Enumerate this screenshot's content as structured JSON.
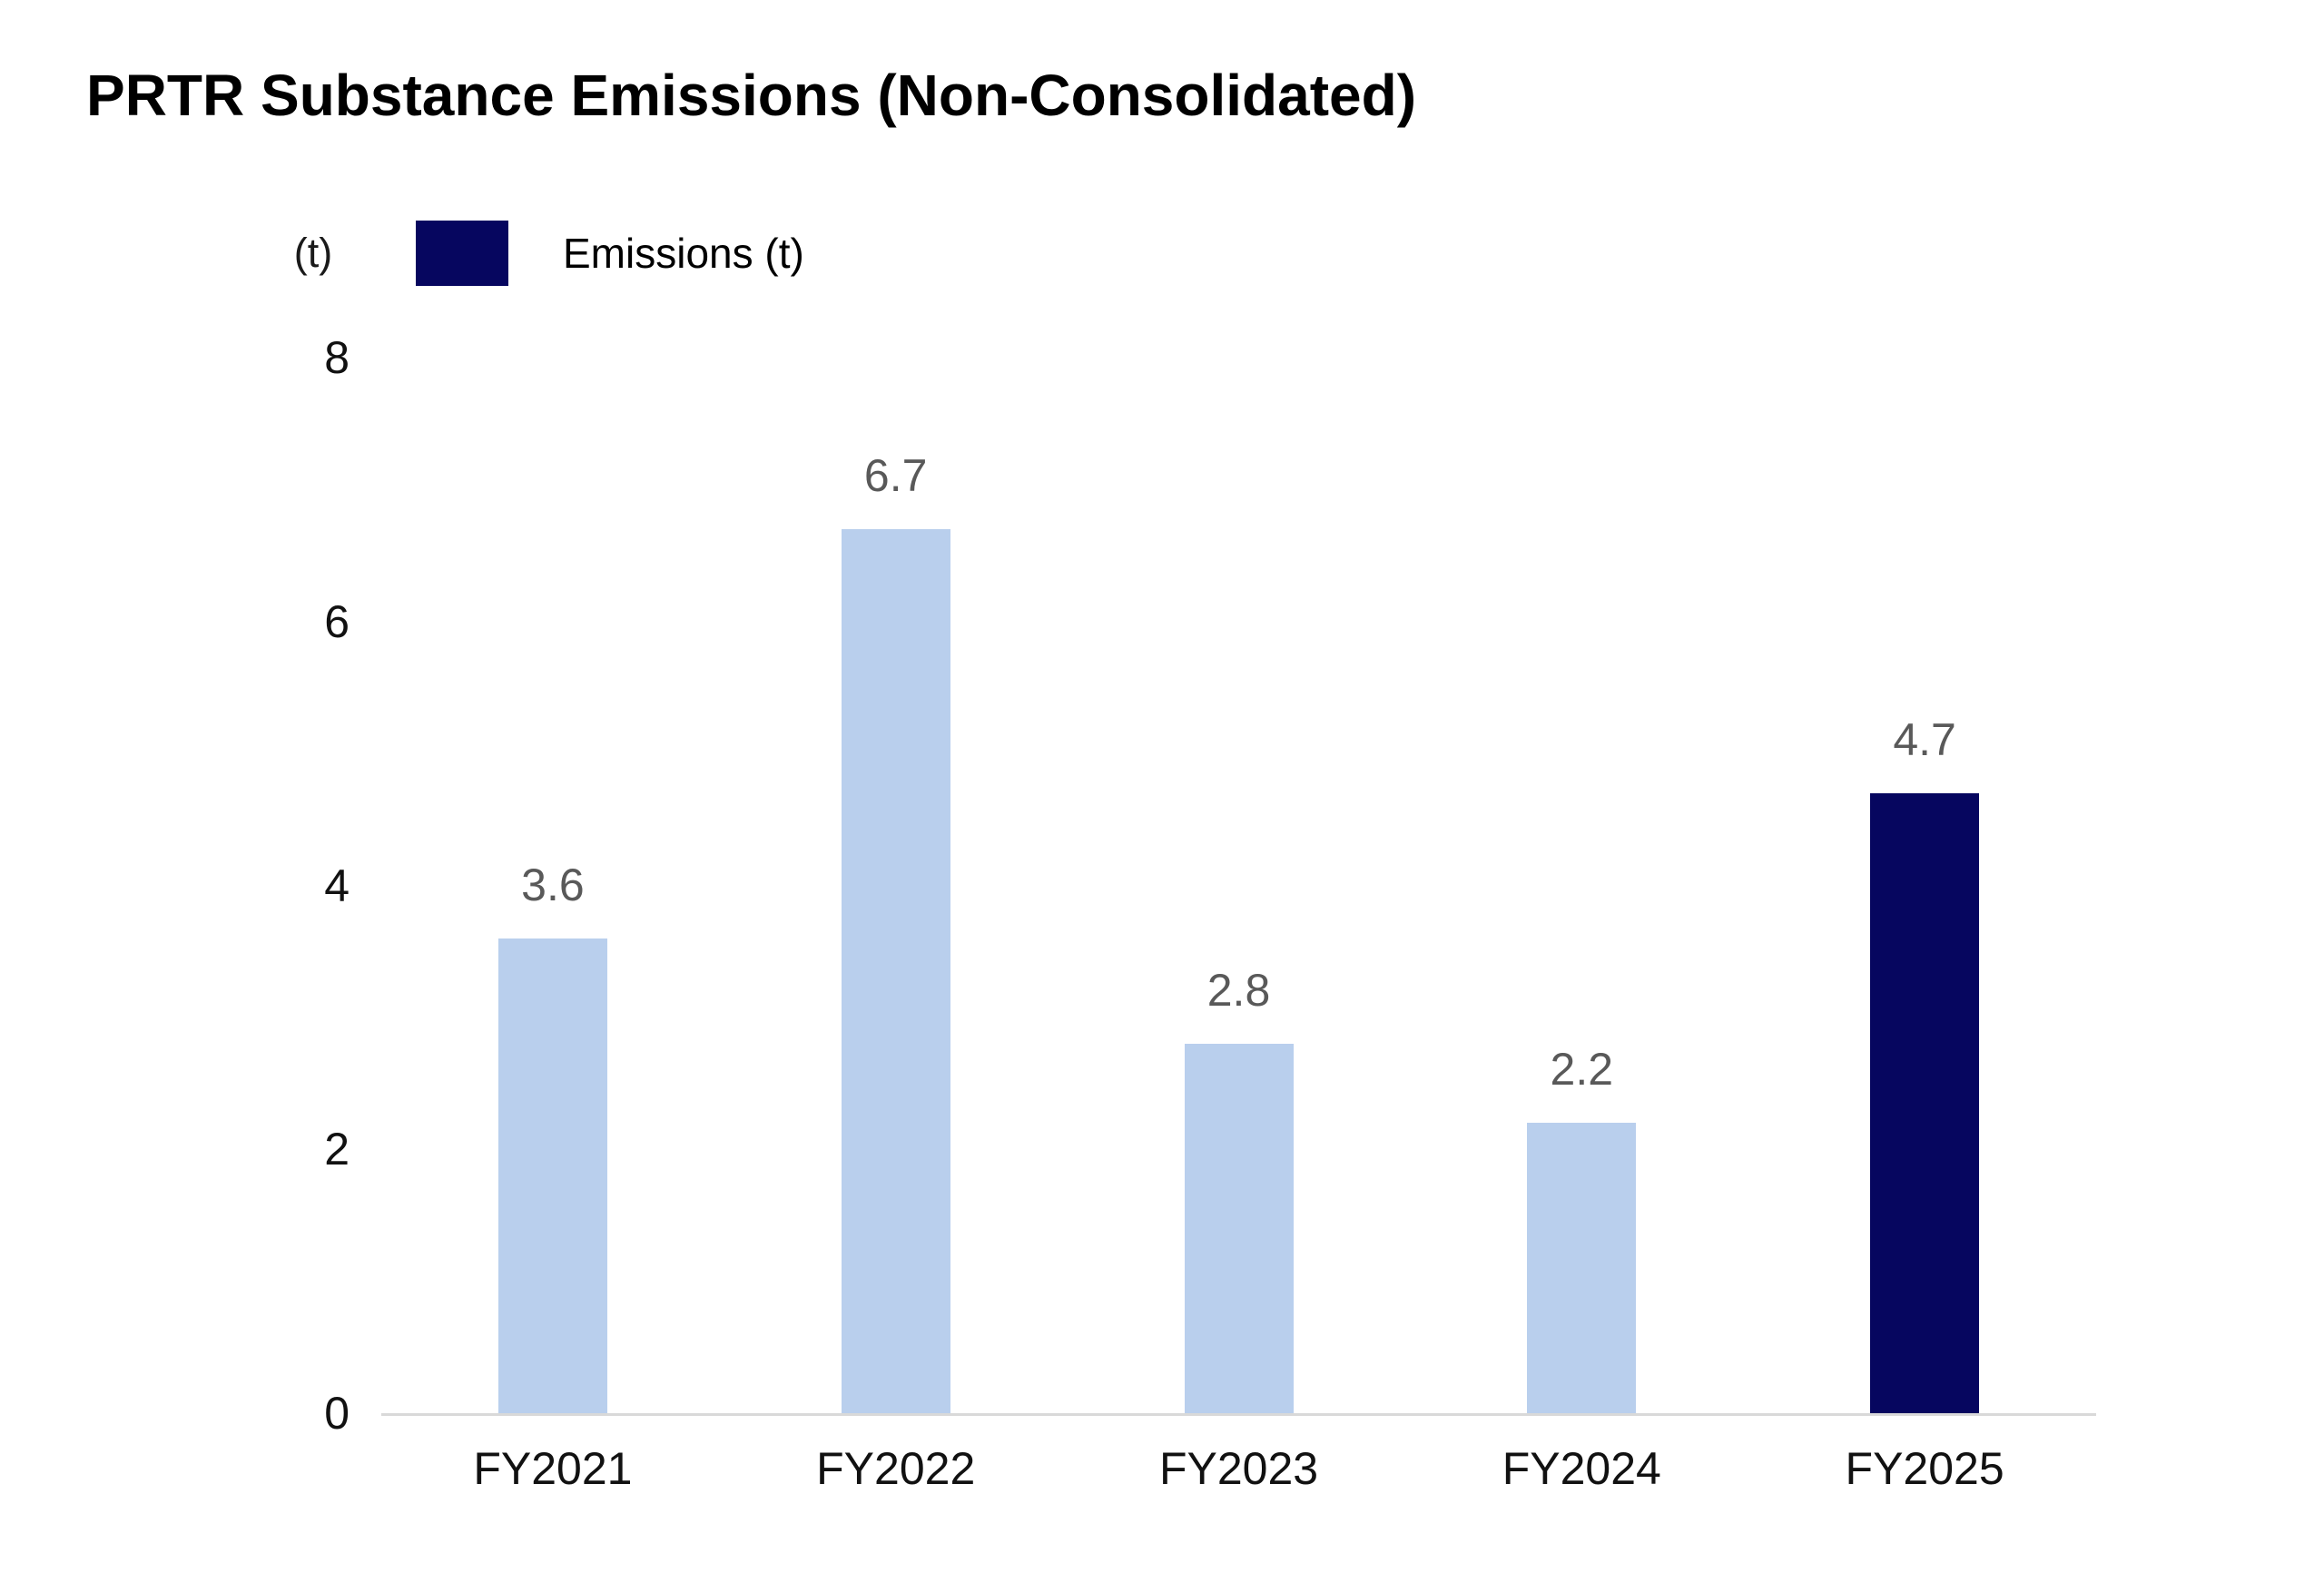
{
  "title": "PRTR Substance Emissions (Non-Consolidated)",
  "axis_unit": "(t)",
  "legend": {
    "label": "Emissions (t)",
    "swatch_color": "#06065F"
  },
  "chart_data": {
    "type": "bar",
    "title": "PRTR Substance Emissions (Non-Consolidated)",
    "categories": [
      "FY2021",
      "FY2022",
      "FY2023",
      "FY2024",
      "FY2025"
    ],
    "series": [
      {
        "name": "Emissions (t)",
        "values": [
          3.6,
          6.7,
          2.8,
          2.2,
          4.7
        ]
      }
    ],
    "data_labels": [
      "3.6",
      "6.7",
      "2.8",
      "2.2",
      "4.7"
    ],
    "xlabel": "",
    "ylabel": "(t)",
    "ylim": [
      0,
      8
    ],
    "yticks": [
      0,
      2,
      4,
      6,
      8
    ],
    "grid": false,
    "legend_position": "top-left",
    "bar_colors": [
      "#B9CFED",
      "#B9CFED",
      "#B9CFED",
      "#B9CFED",
      "#06065F"
    ],
    "highlight_index": 4
  },
  "colors": {
    "bar_default": "#B9CFED",
    "bar_highlight": "#06065F",
    "axis_line": "#D9D9D9",
    "data_label": "#595959",
    "tick_label": "#111111",
    "title": "#000000"
  }
}
